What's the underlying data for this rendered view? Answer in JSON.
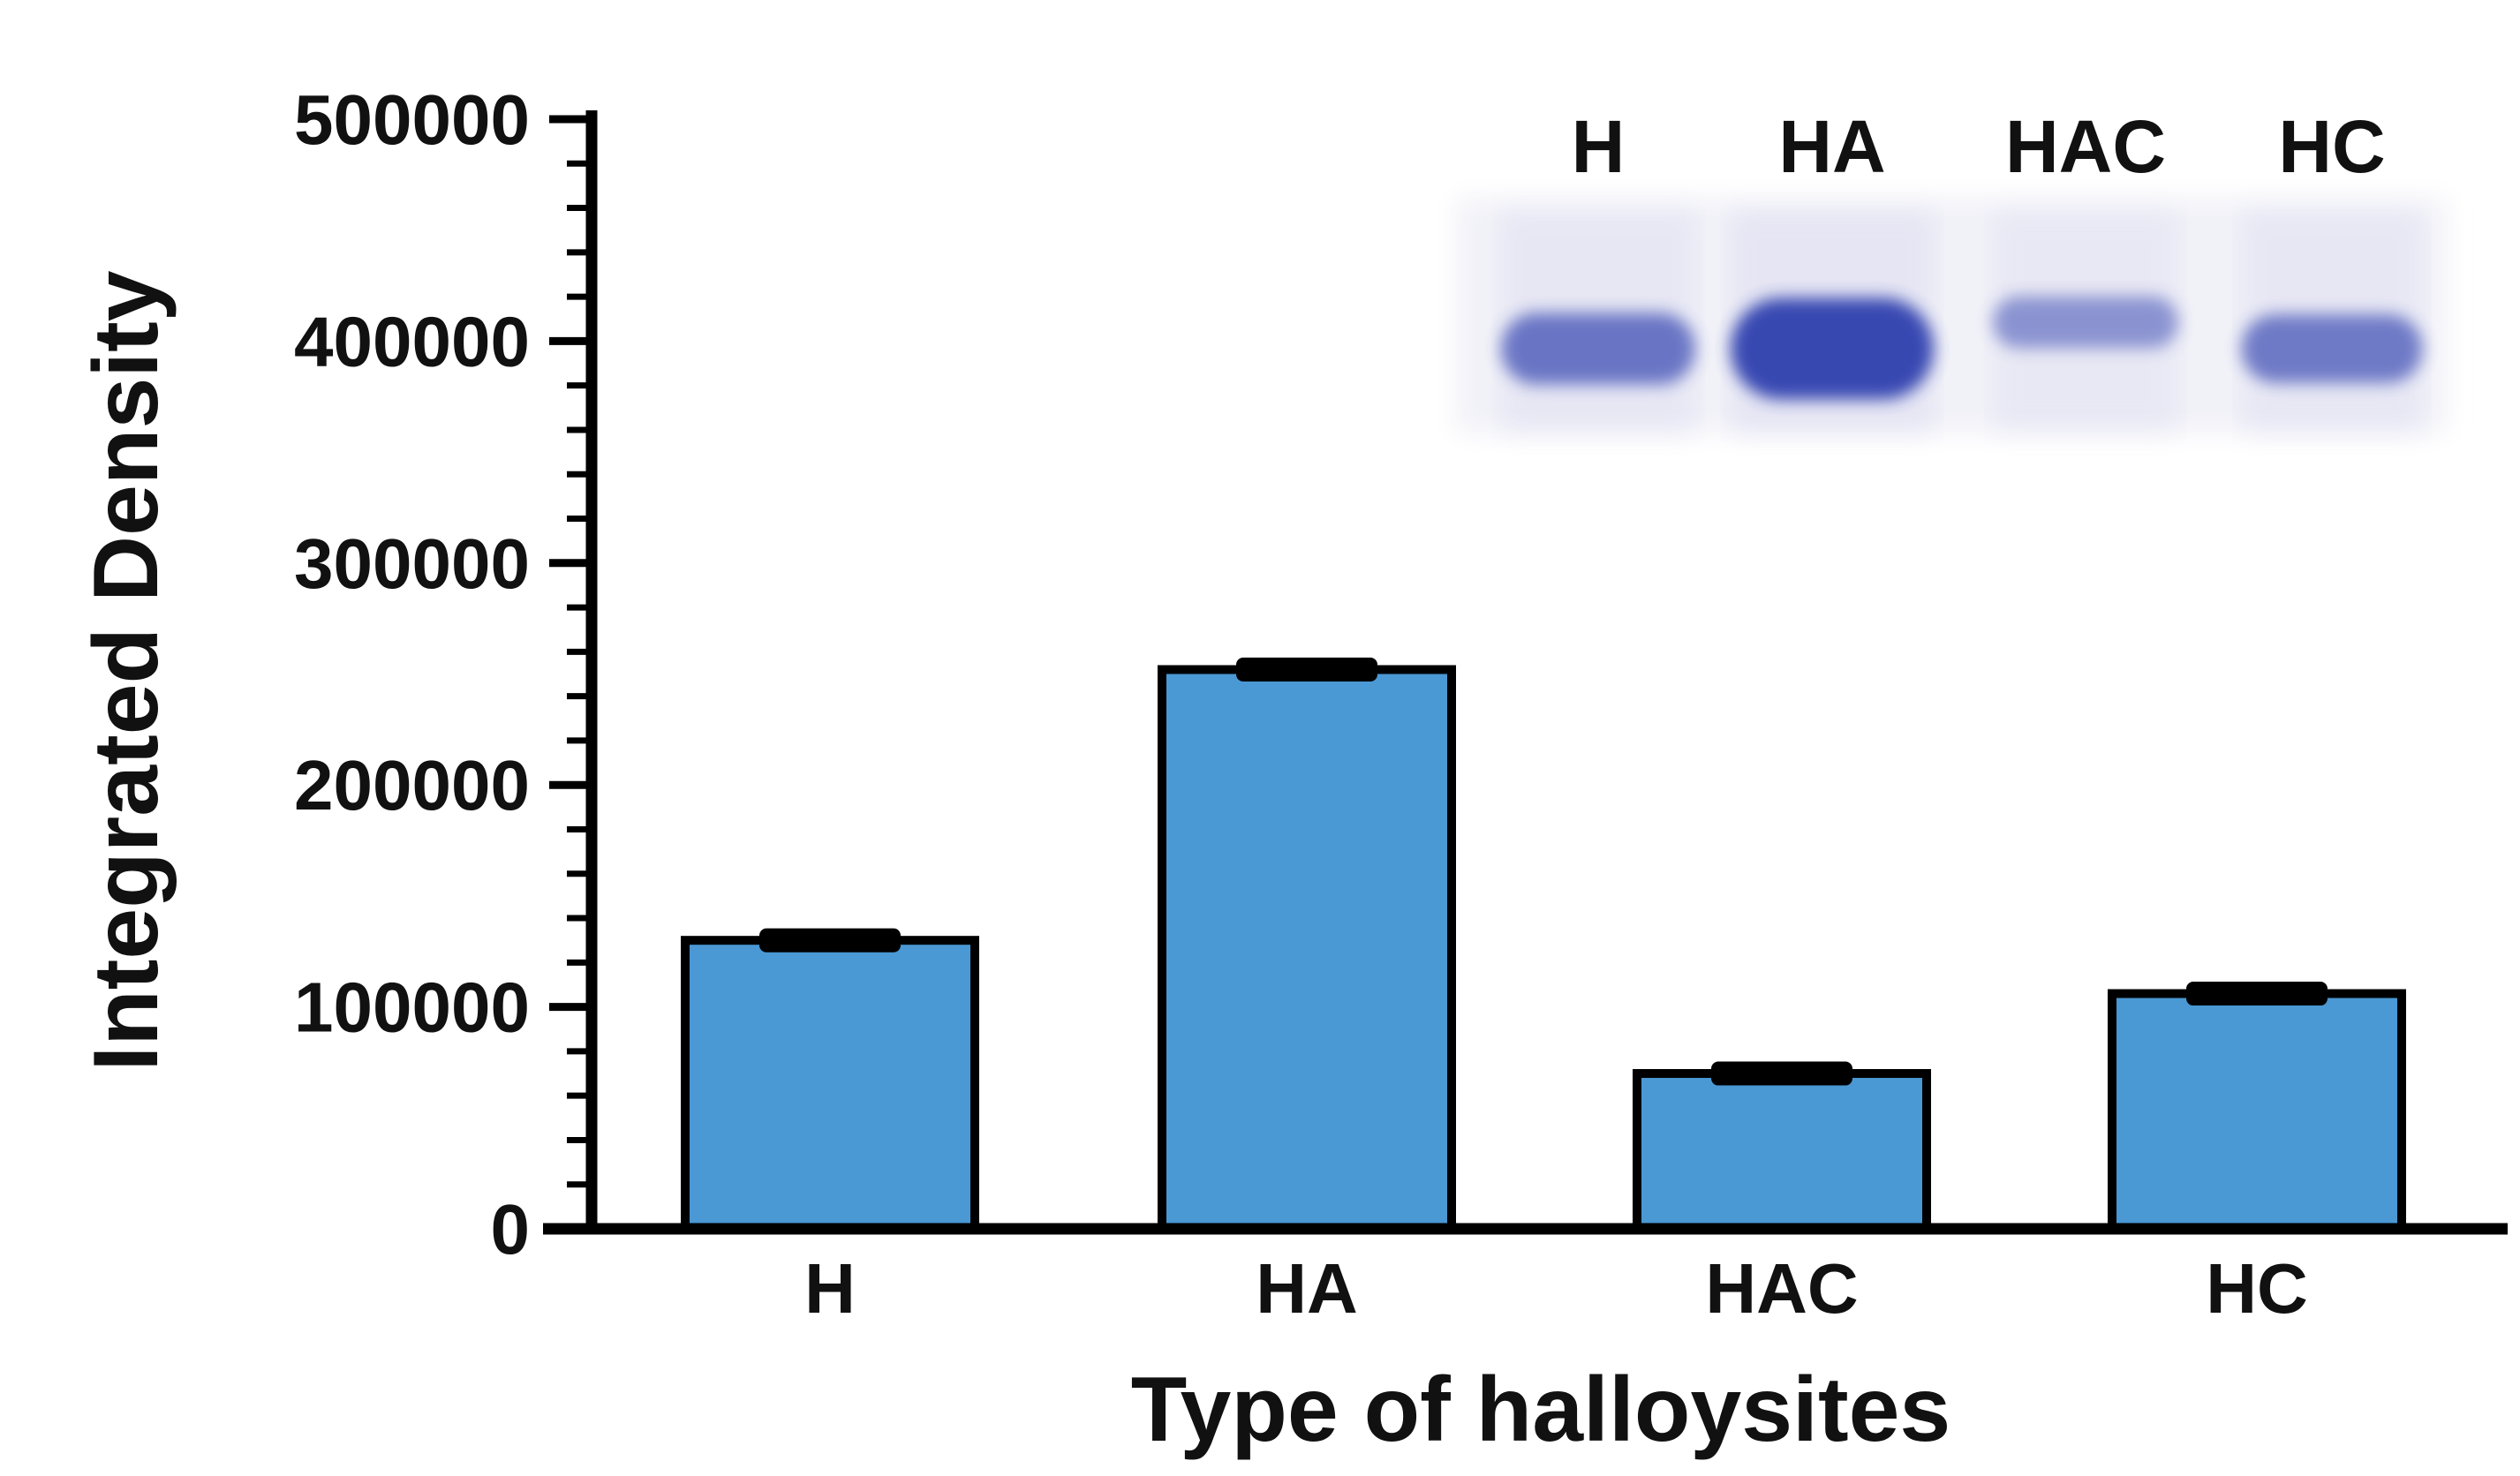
{
  "chart_data": {
    "type": "bar",
    "categories": [
      "H",
      "HA",
      "HAC",
      "HC"
    ],
    "values": [
      130000,
      252000,
      70000,
      106000
    ],
    "errors": [
      3000,
      3000,
      3000,
      3000
    ],
    "xlabel": "Type of halloysites",
    "ylabel": "Integrated Density",
    "ylim": [
      0,
      500000
    ],
    "yticks": [
      "0",
      "100000",
      "200000",
      "300000",
      "400000",
      "500000"
    ],
    "bar_color": "#4a98d4",
    "grid": false,
    "inset": {
      "type": "gel image",
      "lanes": [
        "H",
        "HA",
        "HAC",
        "HC"
      ],
      "band_intensity": [
        0.55,
        1.0,
        0.25,
        0.5
      ],
      "band_color": "#2f3fae"
    }
  }
}
